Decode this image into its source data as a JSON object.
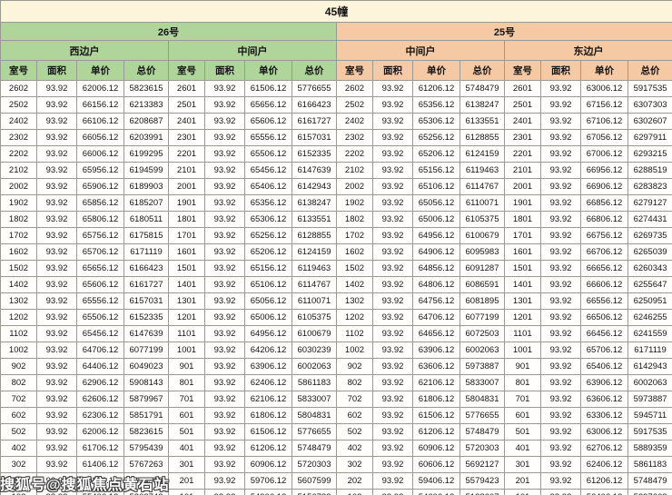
{
  "title": "45幢",
  "watermark": "搜狐号@搜狐焦点黄石站",
  "colors": {
    "green_header": "#afd59b",
    "orange_header": "#f4c9a3",
    "title_background": "#fcf5dc",
    "border": "#9a9a92"
  },
  "header": {
    "buildings": [
      {
        "label": "26号",
        "theme": "green"
      },
      {
        "label": "25号",
        "theme": "orange"
      }
    ],
    "units": [
      {
        "label": "西边户",
        "building": "26号",
        "theme": "green"
      },
      {
        "label": "中间户",
        "building": "26号",
        "theme": "green"
      },
      {
        "label": "中间户",
        "building": "25号",
        "theme": "orange"
      },
      {
        "label": "东边户",
        "building": "25号",
        "theme": "orange"
      }
    ],
    "columns": [
      "室号",
      "面积",
      "单价",
      "总价"
    ]
  },
  "chart_data": {
    "type": "table",
    "title": "45幢",
    "column_groups": [
      "26号 西边户",
      "26号 中间户",
      "25号 中间户",
      "25号 东边户"
    ],
    "columns_per_group": [
      "室号",
      "面积",
      "单价",
      "总价"
    ],
    "rows": [
      [
        "2602",
        "93.92",
        "62006.12",
        "5823615",
        "2601",
        "93.92",
        "61506.12",
        "5776655",
        "2602",
        "93.92",
        "61206.12",
        "5748479",
        "2601",
        "93.92",
        "63006.12",
        "5917535"
      ],
      [
        "2502",
        "93.92",
        "66156.12",
        "6213383",
        "2501",
        "93.92",
        "65656.12",
        "6166423",
        "2502",
        "93.92",
        "65356.12",
        "6138247",
        "2501",
        "93.92",
        "67156.12",
        "6307303"
      ],
      [
        "2402",
        "93.92",
        "66106.12",
        "6208687",
        "2401",
        "93.92",
        "65606.12",
        "6161727",
        "2402",
        "93.92",
        "65306.12",
        "6133551",
        "2401",
        "93.92",
        "67106.12",
        "6302607"
      ],
      [
        "2302",
        "93.92",
        "66056.12",
        "6203991",
        "2301",
        "93.92",
        "65556.12",
        "6157031",
        "2302",
        "93.92",
        "65256.12",
        "6128855",
        "2301",
        "93.92",
        "67056.12",
        "6297911"
      ],
      [
        "2202",
        "93.92",
        "66006.12",
        "6199295",
        "2201",
        "93.92",
        "65506.12",
        "6152335",
        "2202",
        "93.92",
        "65206.12",
        "6124159",
        "2201",
        "93.92",
        "67006.12",
        "6293215"
      ],
      [
        "2102",
        "93.92",
        "65956.12",
        "6194599",
        "2101",
        "93.92",
        "65456.12",
        "6147639",
        "2102",
        "93.92",
        "65156.12",
        "6119463",
        "2101",
        "93.92",
        "66956.12",
        "6288519"
      ],
      [
        "2002",
        "93.92",
        "65906.12",
        "6189903",
        "2001",
        "93.92",
        "65406.12",
        "6142943",
        "2002",
        "93.92",
        "65106.12",
        "6114767",
        "2001",
        "93.92",
        "66906.12",
        "6283823"
      ],
      [
        "1902",
        "93.92",
        "65856.12",
        "6185207",
        "1901",
        "93.92",
        "65356.12",
        "6138247",
        "1902",
        "93.92",
        "65056.12",
        "6110071",
        "1901",
        "93.92",
        "66856.12",
        "6279127"
      ],
      [
        "1802",
        "93.92",
        "65806.12",
        "6180511",
        "1801",
        "93.92",
        "65306.12",
        "6133551",
        "1802",
        "93.92",
        "65006.12",
        "6105375",
        "1801",
        "93.92",
        "66806.12",
        "6274431"
      ],
      [
        "1702",
        "93.92",
        "65756.12",
        "6175815",
        "1701",
        "93.92",
        "65256.12",
        "6128855",
        "1702",
        "93.92",
        "64956.12",
        "6100679",
        "1701",
        "93.92",
        "66756.12",
        "6269735"
      ],
      [
        "1602",
        "93.92",
        "65706.12",
        "6171119",
        "1601",
        "93.92",
        "65206.12",
        "6124159",
        "1602",
        "93.92",
        "64906.12",
        "6095983",
        "1601",
        "93.92",
        "66706.12",
        "6265039"
      ],
      [
        "1502",
        "93.92",
        "65656.12",
        "6166423",
        "1501",
        "93.92",
        "65156.12",
        "6119463",
        "1502",
        "93.92",
        "64856.12",
        "6091287",
        "1501",
        "93.92",
        "66656.12",
        "6260343"
      ],
      [
        "1402",
        "93.92",
        "65606.12",
        "6161727",
        "1401",
        "93.92",
        "65106.12",
        "6114767",
        "1402",
        "93.92",
        "64806.12",
        "6086591",
        "1401",
        "93.92",
        "66606.12",
        "6255647"
      ],
      [
        "1302",
        "93.92",
        "65556.12",
        "6157031",
        "1301",
        "93.92",
        "65056.12",
        "6110071",
        "1302",
        "93.92",
        "64756.12",
        "6081895",
        "1301",
        "93.92",
        "66556.12",
        "6250951"
      ],
      [
        "1202",
        "93.92",
        "65506.12",
        "6152335",
        "1201",
        "93.92",
        "65006.12",
        "6105375",
        "1202",
        "93.92",
        "64706.12",
        "6077199",
        "1201",
        "93.92",
        "66506.12",
        "6246255"
      ],
      [
        "1102",
        "93.92",
        "65456.12",
        "6147639",
        "1101",
        "93.92",
        "64956.12",
        "6100679",
        "1102",
        "93.92",
        "64656.12",
        "6072503",
        "1101",
        "93.92",
        "66456.12",
        "6241559"
      ],
      [
        "1002",
        "93.92",
        "64706.12",
        "6077199",
        "1001",
        "93.92",
        "64206.12",
        "6030239",
        "1002",
        "93.92",
        "63906.12",
        "6002063",
        "1001",
        "93.92",
        "65706.12",
        "6171119"
      ],
      [
        "902",
        "93.92",
        "64406.12",
        "6049023",
        "901",
        "93.92",
        "63906.12",
        "6002063",
        "902",
        "93.92",
        "63606.12",
        "5973887",
        "901",
        "93.92",
        "65406.12",
        "6142943"
      ],
      [
        "802",
        "93.92",
        "62906.12",
        "5908143",
        "801",
        "93.92",
        "62406.12",
        "5861183",
        "802",
        "93.92",
        "62106.12",
        "5833007",
        "801",
        "93.92",
        "63906.12",
        "6002063"
      ],
      [
        "702",
        "93.92",
        "62606.12",
        "5879967",
        "701",
        "93.92",
        "62106.12",
        "5833007",
        "702",
        "93.92",
        "61806.12",
        "5804831",
        "701",
        "93.92",
        "63606.12",
        "5973887"
      ],
      [
        "602",
        "93.92",
        "62306.12",
        "5851791",
        "601",
        "93.92",
        "61806.12",
        "5804831",
        "602",
        "93.92",
        "61506.12",
        "5776655",
        "601",
        "93.92",
        "63306.12",
        "5945711"
      ],
      [
        "502",
        "93.92",
        "62006.12",
        "5823615",
        "501",
        "93.92",
        "61506.12",
        "5776655",
        "502",
        "93.92",
        "61206.12",
        "5748479",
        "501",
        "93.92",
        "63006.12",
        "5917535"
      ],
      [
        "402",
        "93.92",
        "61706.12",
        "5795439",
        "401",
        "93.92",
        "61206.12",
        "5748479",
        "402",
        "93.92",
        "60906.12",
        "5720303",
        "401",
        "93.92",
        "62706.12",
        "5889359"
      ],
      [
        "302",
        "93.92",
        "61406.12",
        "5767263",
        "301",
        "93.92",
        "60906.12",
        "5720303",
        "302",
        "93.92",
        "60606.12",
        "5692127",
        "301",
        "93.92",
        "62406.12",
        "5861183"
      ],
      [
        "202",
        "93.92",
        "60206.12",
        "5654559",
        "201",
        "93.92",
        "59706.12",
        "5607599",
        "202",
        "93.92",
        "59406.12",
        "5579423",
        "201",
        "93.92",
        "61206.12",
        "5748479"
      ],
      [
        "102",
        "93.92",
        "55406.12",
        "5203743",
        "101",
        "93.92",
        "54906.12",
        "5156783",
        "102",
        "93.92",
        "54606.12",
        "5128607",
        "101",
        "93.92",
        "56406.12",
        "5297663"
      ]
    ]
  }
}
